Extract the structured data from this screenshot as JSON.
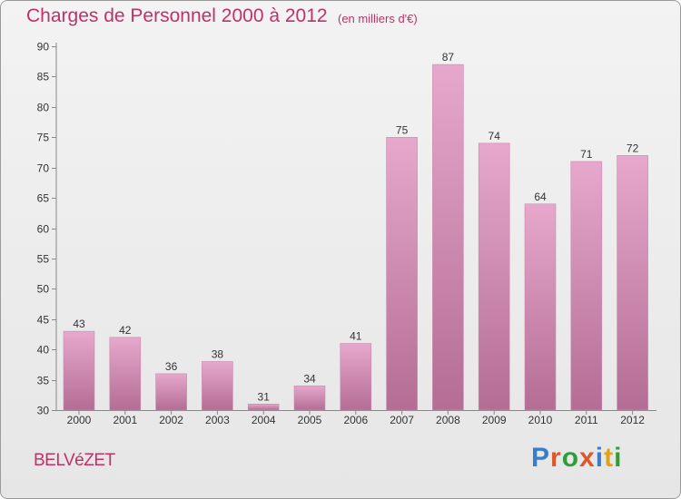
{
  "header": {
    "title": "Charges de Personnel 2000 à 2012",
    "subtitle": "(en milliers d'€)"
  },
  "footer": {
    "commune": "BELVéZET",
    "brand": "Proxiti",
    "brand_letter_colors": [
      "#3a7dc8",
      "#e0562a",
      "#2f9e3a",
      "#e0562a",
      "#3a7dc8",
      "#e0a020",
      "#2f9e3a"
    ]
  },
  "chart_data": {
    "type": "bar",
    "categories": [
      "2000",
      "2001",
      "2002",
      "2003",
      "2004",
      "2005",
      "2006",
      "2007",
      "2008",
      "2009",
      "2010",
      "2011",
      "2012"
    ],
    "values": [
      43,
      42,
      36,
      38,
      31,
      34,
      41,
      75,
      87,
      74,
      64,
      71,
      72
    ],
    "ylim": [
      30,
      90
    ],
    "yticks": [
      30,
      35,
      40,
      45,
      50,
      55,
      60,
      65,
      70,
      75,
      80,
      85,
      90
    ],
    "grid": false,
    "legend": "none",
    "bar_color_top": "#e6a8cc",
    "bar_color_bottom": "#b46d94",
    "axis_color": "#888888"
  }
}
